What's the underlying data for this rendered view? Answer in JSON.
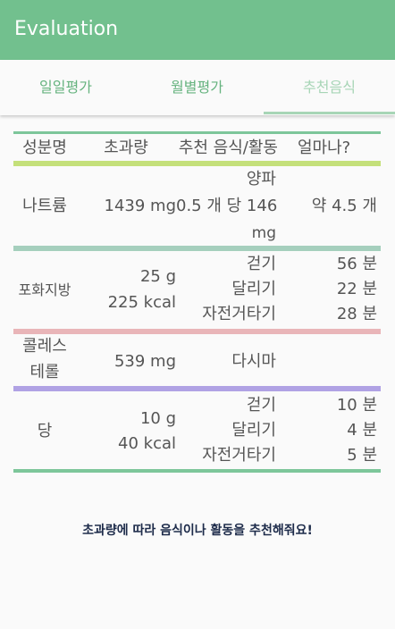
{
  "app": {
    "title": "Evaluation"
  },
  "tabs": [
    {
      "label": "일일평가"
    },
    {
      "label": "월별평가"
    },
    {
      "label": "추천음식"
    }
  ],
  "table": {
    "headers": [
      "성분명",
      "초과량",
      "추천 음식/활동",
      "얼마나?"
    ],
    "rows": [
      {
        "name": "나트륨",
        "amount": [
          "1439 mg"
        ],
        "recommend": [
          "양파",
          "0.5 개 당 146",
          "mg"
        ],
        "how_much": [
          "약 4.5 개"
        ],
        "color": "#a5cfbd"
      },
      {
        "name": "포화지방",
        "amount": [
          "25 g",
          "225 kcal"
        ],
        "recommend": [
          "걷기",
          "달리기",
          "자전거타기"
        ],
        "how_much": [
          "56 분",
          "22 분",
          "28 분"
        ],
        "color": "#e9b5b8"
      },
      {
        "name": "콜레스테롤",
        "name_lines": [
          "콜레스",
          "테롤"
        ],
        "amount": [
          "539 mg"
        ],
        "recommend": [
          "다시마"
        ],
        "how_much": [],
        "color": "#b0a2e4"
      },
      {
        "name": "당",
        "amount": [
          "10 g",
          "40 kcal"
        ],
        "recommend": [
          "걷기",
          "달리기",
          "자전거타기"
        ],
        "how_much": [
          "10 분",
          "4 분",
          "5 분"
        ],
        "color": "#7dc69a"
      }
    ],
    "header_line_color": "#c4e07a",
    "top_line_color": "#7dc69a"
  },
  "footer_note": "초과량에 따라 음식이나 활동을 추천해줘요!"
}
